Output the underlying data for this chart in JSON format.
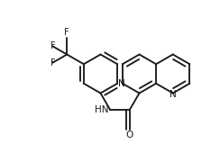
{
  "bg_color": "#ffffff",
  "bond_color": "#1a1a1a",
  "text_color": "#1a1a1a",
  "lw": 1.35,
  "figsize": [
    2.44,
    1.7
  ],
  "dpi": 100,
  "xlim": [
    0.0,
    2.44
  ],
  "ylim": [
    0.0,
    1.7
  ],
  "font_size": 7.5
}
